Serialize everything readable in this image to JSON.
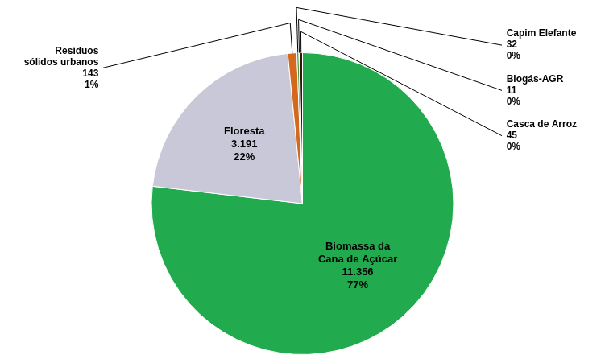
{
  "chart_data": {
    "type": "pie",
    "categories": [
      "Biomassa da\nCana de Açúcar",
      "Floresta",
      "Resíduos\nsólidos urbanos",
      "Capim Elefante",
      "Biogás-AGR",
      "Casca de Arroz"
    ],
    "values": [
      11356,
      3191,
      143,
      32,
      11,
      45
    ],
    "value_labels": [
      "11.356",
      "3.191",
      "143",
      "32",
      "11",
      "45"
    ],
    "shares": [
      77,
      22,
      1,
      0,
      0,
      0
    ],
    "share_labels": [
      "77%",
      "22%",
      "1%",
      "0%",
      "0%",
      "0%"
    ],
    "colors": [
      "#22aa4e",
      "#c8c8d8",
      "#d2691e",
      "#4a9e4a",
      "#ffd700",
      "#2a1a00"
    ],
    "data_labels": true
  }
}
